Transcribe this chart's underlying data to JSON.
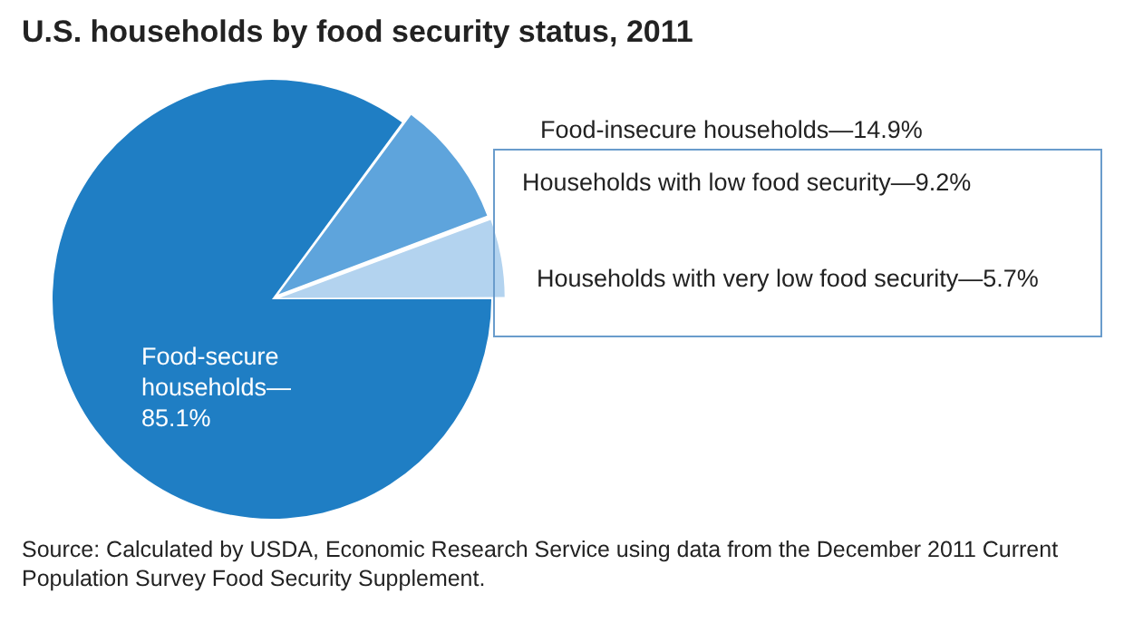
{
  "chart_data": {
    "type": "pie",
    "title": "U.S. households by food security status, 2011",
    "categories": [
      "Food-secure households—85.1%",
      "Households with low food security—9.2%",
      "Households with very low food security—5.7%"
    ],
    "values": [
      85.1,
      9.2,
      5.7
    ],
    "colors": [
      "#1f7ec4",
      "#5ea4dc",
      "#b3d3ef"
    ],
    "annotations": [
      "Food-insecure households—14.9%",
      "Source: Calculated by USDA, Economic Research Service using data from the December 2011 Current Population Survey Food Security Supplement."
    ]
  }
}
